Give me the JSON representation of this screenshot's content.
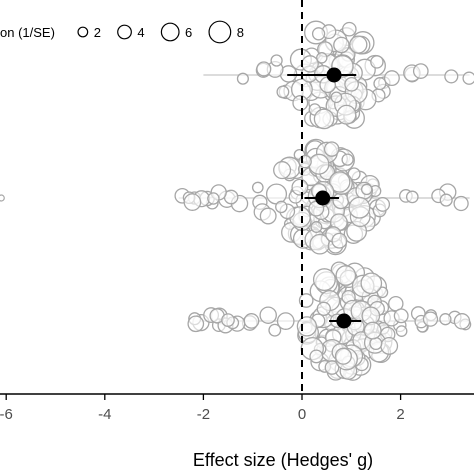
{
  "chart_data": {
    "type": "scatter",
    "xlabel": "Effect size (Hedges' g)",
    "xlim": [
      -6.2,
      3.5
    ],
    "x_ticks": [
      -6,
      -4,
      -2,
      0,
      2
    ],
    "x_tick_labels": [
      "-6",
      "-4",
      "-2",
      "0",
      "2"
    ],
    "reference_line_x": 0,
    "legend": {
      "title": "on (1/SE)",
      "sizes": [
        2,
        4,
        6,
        8
      ],
      "labels": [
        "2",
        "4",
        "6",
        "8"
      ],
      "placement": "top-left"
    },
    "groups": [
      {
        "estimate": 0.65,
        "ci": [
          -0.3,
          1.1
        ],
        "x_range": [
          -2.0,
          3.4
        ],
        "n_points": 95
      },
      {
        "estimate": 0.42,
        "ci": [
          0.05,
          0.75
        ],
        "x_range": [
          -2.5,
          3.4
        ],
        "outlier_x": -6.1,
        "n_points": 150
      },
      {
        "estimate": 0.85,
        "ci": [
          0.55,
          1.2
        ],
        "x_range": [
          -2.2,
          3.4
        ],
        "n_points": 160
      }
    ],
    "colors": {
      "points_stroke": "#a6a6a6",
      "points_fill": "#ffffff",
      "estimate": "#000000",
      "reference_line": "#000000"
    }
  }
}
